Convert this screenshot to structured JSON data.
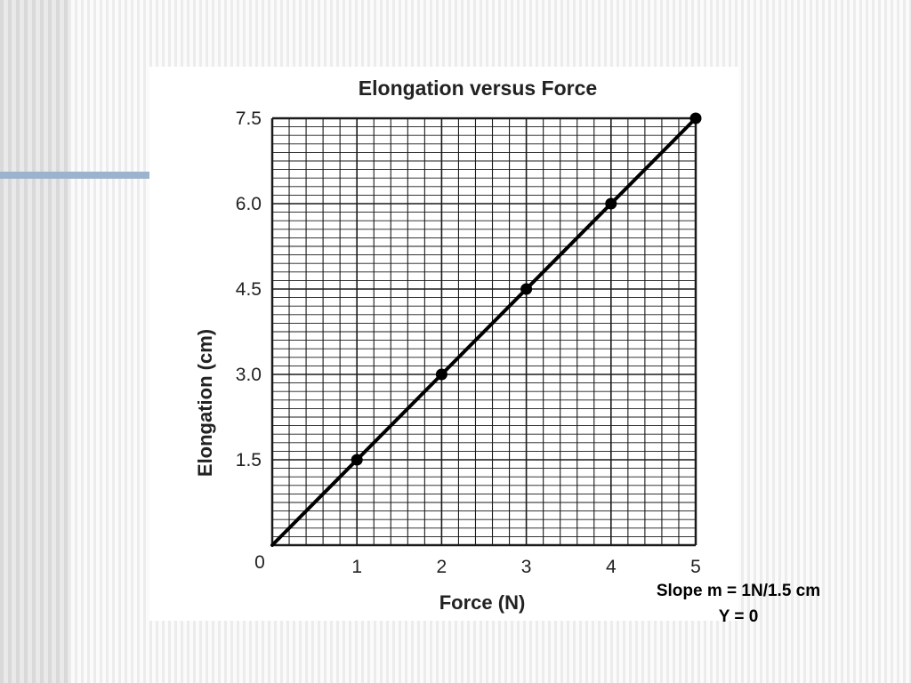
{
  "chart_data": {
    "type": "scatter",
    "title": "Elongation versus Force",
    "xlabel": "Force (N)",
    "ylabel": "Elongation (cm)",
    "xlim": [
      0,
      5
    ],
    "ylim": [
      0,
      7.5
    ],
    "x_ticks": [
      "0",
      "1",
      "2",
      "3",
      "4",
      "5"
    ],
    "y_ticks": [
      "1.5",
      "3.0",
      "4.5",
      "6.0",
      "7.5"
    ],
    "grid": true,
    "points": [
      {
        "x": 1,
        "y": 1.5
      },
      {
        "x": 2,
        "y": 3.0
      },
      {
        "x": 3,
        "y": 4.5
      },
      {
        "x": 4,
        "y": 6.0
      },
      {
        "x": 5,
        "y": 7.5
      }
    ],
    "fit_line": {
      "x": [
        0,
        5
      ],
      "y": [
        0,
        7.5
      ]
    }
  },
  "annotation": {
    "line1": "Slope m = 1N/1.5 cm",
    "line2": "Y = 0"
  },
  "colors": {
    "ink": "#000000",
    "accent_line": "#9bb3cc"
  }
}
